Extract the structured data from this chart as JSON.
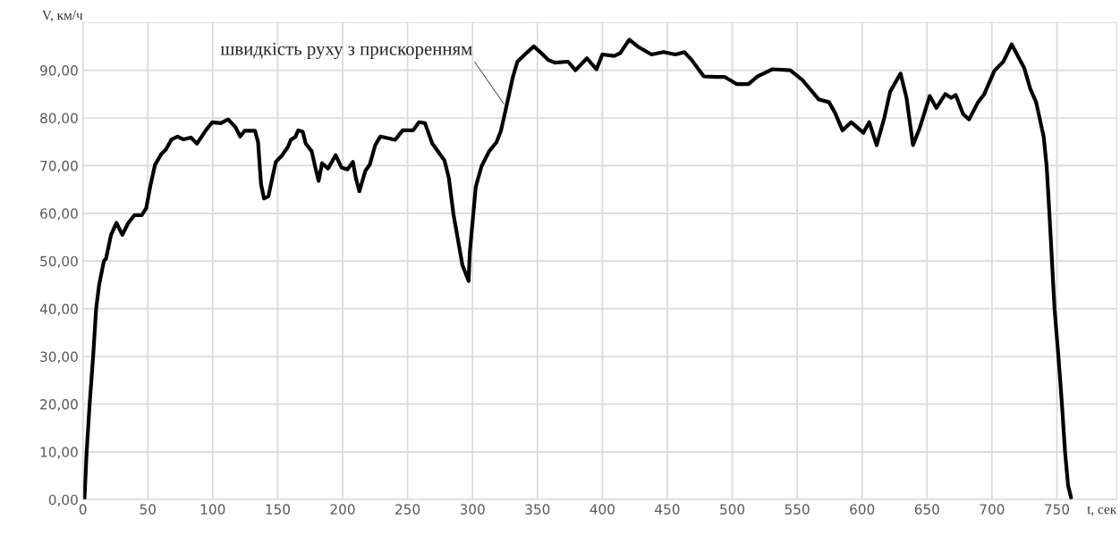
{
  "chart_data": {
    "type": "line",
    "xlabel": "t, сек",
    "ylabel": "V, км/ч",
    "annotations": [
      {
        "text": "швидкість руху з прискоренням",
        "x": 324,
        "y": 83
      }
    ],
    "series": [
      {
        "color": "#000000",
        "x": [
          1.2,
          2.9,
          5.2,
          7.9,
          10.2,
          12.5,
          16.2,
          17.8,
          21.7,
          25.8,
          30.4,
          35,
          39.6,
          45.3,
          48.8,
          52.2,
          55.6,
          60.3,
          63.7,
          68.3,
          72.9,
          77.5,
          83.2,
          87.8,
          94.7,
          99.7,
          106.2,
          111.9,
          117.6,
          121.1,
          124.5,
          132.6,
          134.9,
          137.2,
          139.5,
          142.9,
          146.3,
          148.6,
          153.2,
          157.9,
          160.1,
          163.6,
          165.8,
          169.3,
          171.6,
          176.2,
          178.5,
          181.5,
          184.2,
          188.8,
          194.6,
          199.2,
          203.7,
          207.9,
          210.2,
          212.9,
          217.5,
          220.9,
          225.1,
          229,
          240.5,
          246.2,
          254.3,
          258.8,
          263.4,
          269.1,
          278.4,
          281.8,
          285.3,
          292.2,
          297,
          297.9,
          302.5,
          307,
          312.8,
          318.5,
          322,
          326.6,
          331.1,
          334.6,
          340.3,
          347.2,
          352.9,
          358.7,
          363.3,
          373.6,
          379.3,
          388.1,
          395.5,
          400,
          409.2,
          413.8,
          420.7,
          427.6,
          437.9,
          447.1,
          456.3,
          463.2,
          468.9,
          478.1,
          487.3,
          494.1,
          503.3,
          512.5,
          519.4,
          530.8,
          544.6,
          553.9,
          566.5,
          574.5,
          579.1,
          584.9,
          591.7,
          601,
          605.5,
          611.2,
          617,
          621.6,
          629.6,
          634.2,
          639.2,
          644.5,
          652.1,
          657.2,
          664,
          668.6,
          672.1,
          677.8,
          682.4,
          689.3,
          693.9,
          701.9,
          708.8,
          715.2,
          724.8,
          729.5,
          734,
          739.8,
          742.1,
          744,
          748.2,
          751.2,
          753.9,
          756.3,
          758.6,
          760.9
        ],
        "values": [
          0,
          10,
          20,
          30,
          40,
          45,
          50,
          50.5,
          55.5,
          58,
          55.5,
          58,
          59.6,
          59.6,
          61.1,
          66.1,
          70.2,
          72.4,
          73.3,
          75.5,
          76.1,
          75.5,
          75.9,
          74.6,
          77.4,
          79.1,
          78.9,
          79.7,
          78,
          76.1,
          77.3,
          77.3,
          74.9,
          66.1,
          63.1,
          63.6,
          68,
          70.8,
          72.1,
          73.9,
          75.4,
          76,
          77.4,
          77.1,
          74.6,
          73,
          70.2,
          66.8,
          70.5,
          69.4,
          72.2,
          69.6,
          69.2,
          70.8,
          67.4,
          64.6,
          68.9,
          70.2,
          74.3,
          76.1,
          75.4,
          77.4,
          77.4,
          79.1,
          78.9,
          74.6,
          71.1,
          67.4,
          59.9,
          49.2,
          45.8,
          51.7,
          65.5,
          69.9,
          73,
          74.9,
          77.4,
          83,
          88.6,
          91.8,
          93.3,
          95,
          93.6,
          92.1,
          91.6,
          91.8,
          90,
          92.5,
          90.2,
          93.3,
          93,
          93.6,
          96.4,
          94.9,
          93.3,
          93.8,
          93.3,
          93.8,
          92.1,
          88.7,
          88.6,
          88.6,
          87.1,
          87.1,
          88.7,
          90.2,
          90,
          88,
          83.9,
          83.3,
          81.1,
          77.4,
          79.1,
          76.9,
          79.1,
          74.3,
          79.9,
          85.5,
          89.3,
          84.2,
          74.3,
          78,
          84.6,
          82.1,
          85,
          84.2,
          84.8,
          80.8,
          79.7,
          83.3,
          84.9,
          89.9,
          91.8,
          95.4,
          90.5,
          86.1,
          83.3,
          76.1,
          69.9,
          61.1,
          39.9,
          29.9,
          19.9,
          9.9,
          3,
          0.4
        ]
      }
    ],
    "xlim": [
      0,
      796
    ],
    "ylim": [
      0,
      100
    ],
    "xticks": [
      0,
      50,
      100,
      150,
      200,
      250,
      300,
      350,
      400,
      450,
      500,
      550,
      600,
      650,
      700,
      750
    ],
    "yticks": [
      {
        "value": 0,
        "label": "0,00"
      },
      {
        "value": 10,
        "label": "10,00"
      },
      {
        "value": 20,
        "label": "20,00"
      },
      {
        "value": 30,
        "label": "30,00"
      },
      {
        "value": 40,
        "label": "40,00"
      },
      {
        "value": 50,
        "label": "50,00"
      },
      {
        "value": 60,
        "label": "60,00"
      },
      {
        "value": 70,
        "label": "70,00"
      },
      {
        "value": 80,
        "label": "80,00"
      },
      {
        "value": 90,
        "label": "90,00"
      }
    ],
    "grid": true
  }
}
